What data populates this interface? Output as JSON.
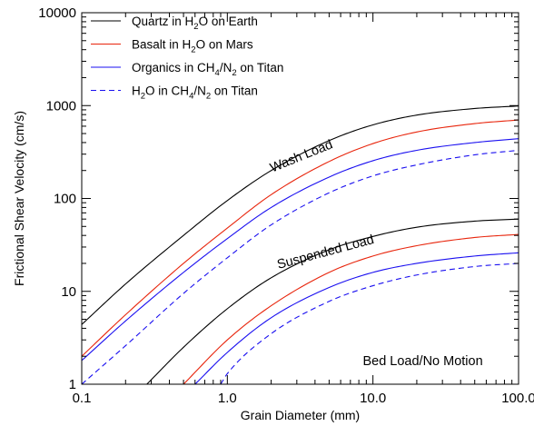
{
  "chart_data": {
    "type": "line",
    "title": "",
    "xlabel": "Grain Diameter (mm)",
    "ylabel": "Frictional Shear Velocity (cm/s)",
    "xscale": "log",
    "yscale": "log",
    "xlim": [
      0.1,
      100
    ],
    "ylim": [
      1,
      10000
    ],
    "xticks": [
      {
        "value": 0.1,
        "label": "0.1"
      },
      {
        "value": 1,
        "label": "1.0"
      },
      {
        "value": 10,
        "label": "10.0"
      },
      {
        "value": 100,
        "label": "100.0"
      }
    ],
    "yticks": [
      {
        "value": 1,
        "label": "1"
      },
      {
        "value": 10,
        "label": "10"
      },
      {
        "value": 100,
        "label": "100"
      },
      {
        "value": 1000,
        "label": "1000"
      },
      {
        "value": 10000,
        "label": "10000"
      }
    ],
    "grid": false,
    "legend_position": "top-left",
    "legend": [
      {
        "parts": [
          {
            "t": "Quartz in H"
          },
          {
            "t": "2",
            "sub": true
          },
          {
            "t": "O on Earth"
          }
        ],
        "color": "#000000",
        "dash": "solid"
      },
      {
        "parts": [
          {
            "t": "Basalt in H"
          },
          {
            "t": "2",
            "sub": true
          },
          {
            "t": "O on Mars"
          }
        ],
        "color": "#e8250c",
        "dash": "solid"
      },
      {
        "parts": [
          {
            "t": "Organics in CH"
          },
          {
            "t": "4",
            "sub": true
          },
          {
            "t": "/N"
          },
          {
            "t": "2",
            "sub": true
          },
          {
            "t": " on Titan"
          }
        ],
        "color": "#1a0ff0",
        "dash": "solid"
      },
      {
        "parts": [
          {
            "t": "H"
          },
          {
            "t": "2",
            "sub": true
          },
          {
            "t": "O in CH"
          },
          {
            "t": "4",
            "sub": true
          },
          {
            "t": "/N"
          },
          {
            "t": "2",
            "sub": true
          },
          {
            "t": " on Titan"
          }
        ],
        "color": "#1a0ff0",
        "dash": "dashed"
      }
    ],
    "series": [
      {
        "name": "Quartz in H2O on Earth — wash load threshold",
        "color": "#000000",
        "dash": "solid",
        "x": [
          0.1,
          0.2,
          0.5,
          1,
          2,
          5,
          10,
          20,
          50,
          100
        ],
        "y": [
          4.4,
          12,
          40,
          95,
          200,
          420,
          620,
          790,
          930,
          990
        ]
      },
      {
        "name": "Basalt in H2O on Mars — wash load threshold",
        "color": "#e8250c",
        "dash": "solid",
        "x": [
          0.1,
          0.2,
          0.5,
          1,
          2,
          5,
          10,
          20,
          50,
          100
        ],
        "y": [
          2,
          5.6,
          20,
          48,
          110,
          250,
          390,
          520,
          640,
          700
        ]
      },
      {
        "name": "Organics in CH4/N2 on Titan — wash load threshold",
        "color": "#1a0ff0",
        "dash": "solid",
        "x": [
          0.1,
          0.2,
          0.5,
          1,
          2,
          5,
          10,
          20,
          50,
          100
        ],
        "y": [
          1.8,
          4.8,
          16,
          37,
          80,
          170,
          255,
          330,
          400,
          440
        ]
      },
      {
        "name": "H2O in CH4/N2 on Titan — wash load threshold",
        "color": "#1a0ff0",
        "dash": "dashed",
        "x": [
          0.1,
          0.2,
          0.5,
          1,
          2,
          5,
          10,
          20,
          50,
          100
        ],
        "y": [
          1,
          2.6,
          9.5,
          23,
          52,
          115,
          175,
          230,
          295,
          330
        ]
      },
      {
        "name": "Quartz in H2O on Earth — suspended load threshold",
        "color": "#000000",
        "dash": "solid",
        "x": [
          0.28,
          0.5,
          1,
          2,
          5,
          10,
          20,
          50,
          100
        ],
        "y": [
          1,
          2.5,
          6.5,
          14,
          28,
          39,
          49,
          57,
          60
        ]
      },
      {
        "name": "Basalt in H2O on Mars — suspended load threshold",
        "color": "#e8250c",
        "dash": "solid",
        "x": [
          0.5,
          1,
          2,
          5,
          10,
          20,
          50,
          100
        ],
        "y": [
          1,
          3,
          7,
          16,
          24,
          31,
          38,
          41
        ]
      },
      {
        "name": "Organics in CH4/N2 on Titan — suspended load threshold",
        "color": "#1a0ff0",
        "dash": "solid",
        "x": [
          0.6,
          1,
          2,
          5,
          10,
          20,
          50,
          100
        ],
        "y": [
          1,
          2.2,
          5.2,
          11,
          16,
          20,
          24,
          26
        ]
      },
      {
        "name": "H2O in CH4/N2 on Titan — suspended load threshold",
        "color": "#1a0ff0",
        "dash": "dashed",
        "x": [
          0.9,
          1,
          2,
          5,
          10,
          20,
          50,
          100
        ],
        "y": [
          1,
          1.3,
          3.5,
          7.8,
          11.5,
          15,
          18.5,
          20
        ]
      }
    ],
    "annotations": [
      {
        "text": "Wash Load",
        "x": 3.3,
        "y": 260,
        "rotation": -22
      },
      {
        "text": "Suspended Load",
        "x": 4.8,
        "y": 24,
        "rotation": -15
      },
      {
        "text": "Bed Load/No Motion",
        "x": 22,
        "y": 1.6,
        "rotation": 0
      }
    ]
  }
}
